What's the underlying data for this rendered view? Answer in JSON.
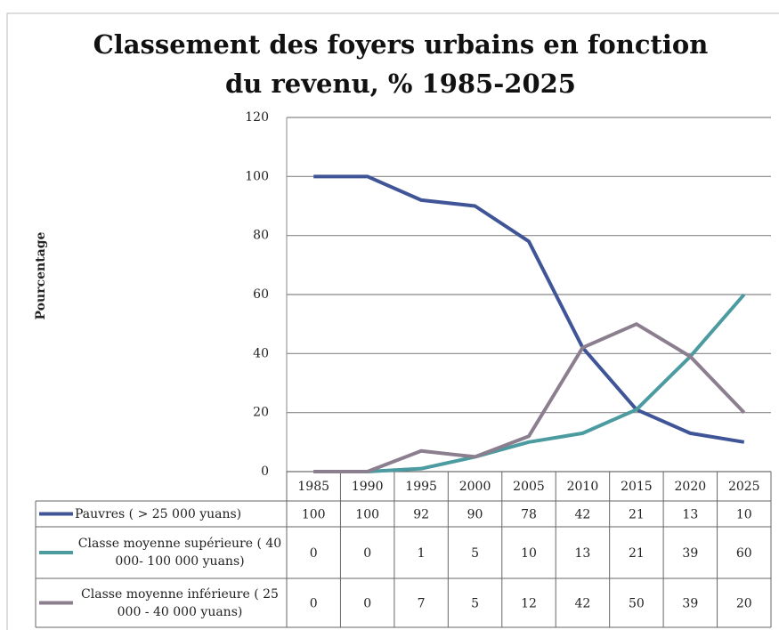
{
  "chart_data": {
    "type": "line",
    "title": "Classement des foyers urbains en fonction du revenu, % 1985-2025",
    "ylabel": "Pourcentage",
    "categories": [
      "1985",
      "1990",
      "1995",
      "2000",
      "2005",
      "2010",
      "2015",
      "2020",
      "2025"
    ],
    "series": [
      {
        "name": "Pauvres ( > 25 000 yuans)",
        "color": "#3f5597",
        "values": [
          100,
          100,
          92,
          90,
          78,
          42,
          21,
          13,
          10
        ]
      },
      {
        "name": "Classe moyenne supérieure ( 40 000- 100 000 yuans)",
        "color": "#4b9ba0",
        "values": [
          0,
          0,
          1,
          5,
          10,
          13,
          21,
          39,
          60
        ]
      },
      {
        "name": "Classe moyenne inférieure ( 25 000 - 40 000 yuans)",
        "color": "#8b7e8e",
        "values": [
          0,
          0,
          7,
          5,
          12,
          42,
          50,
          39,
          20
        ]
      }
    ],
    "ylim": [
      0,
      120
    ],
    "yticks": [
      0,
      20,
      40,
      60,
      80,
      100,
      120
    ],
    "grid": true
  }
}
